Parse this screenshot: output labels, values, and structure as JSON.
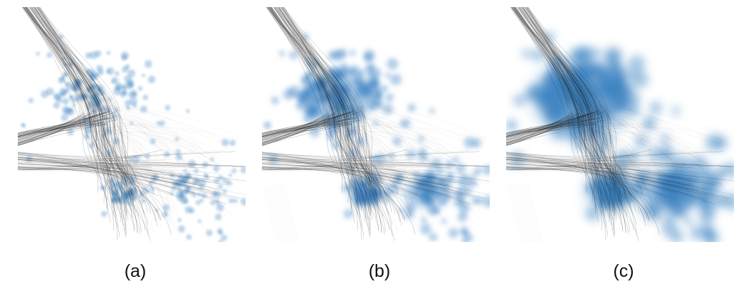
{
  "figure": {
    "panels": [
      {
        "id": "a",
        "caption": "(a)",
        "blur_level": "low"
      },
      {
        "id": "b",
        "caption": "(b)",
        "blur_level": "medium"
      },
      {
        "id": "c",
        "caption": "(c)",
        "blur_level": "high"
      }
    ]
  },
  "colors": {
    "background": "#ffffff",
    "edges": "#1a1a1a",
    "nodes": "#3c82c2",
    "faint_edges": "#7fae7f"
  }
}
